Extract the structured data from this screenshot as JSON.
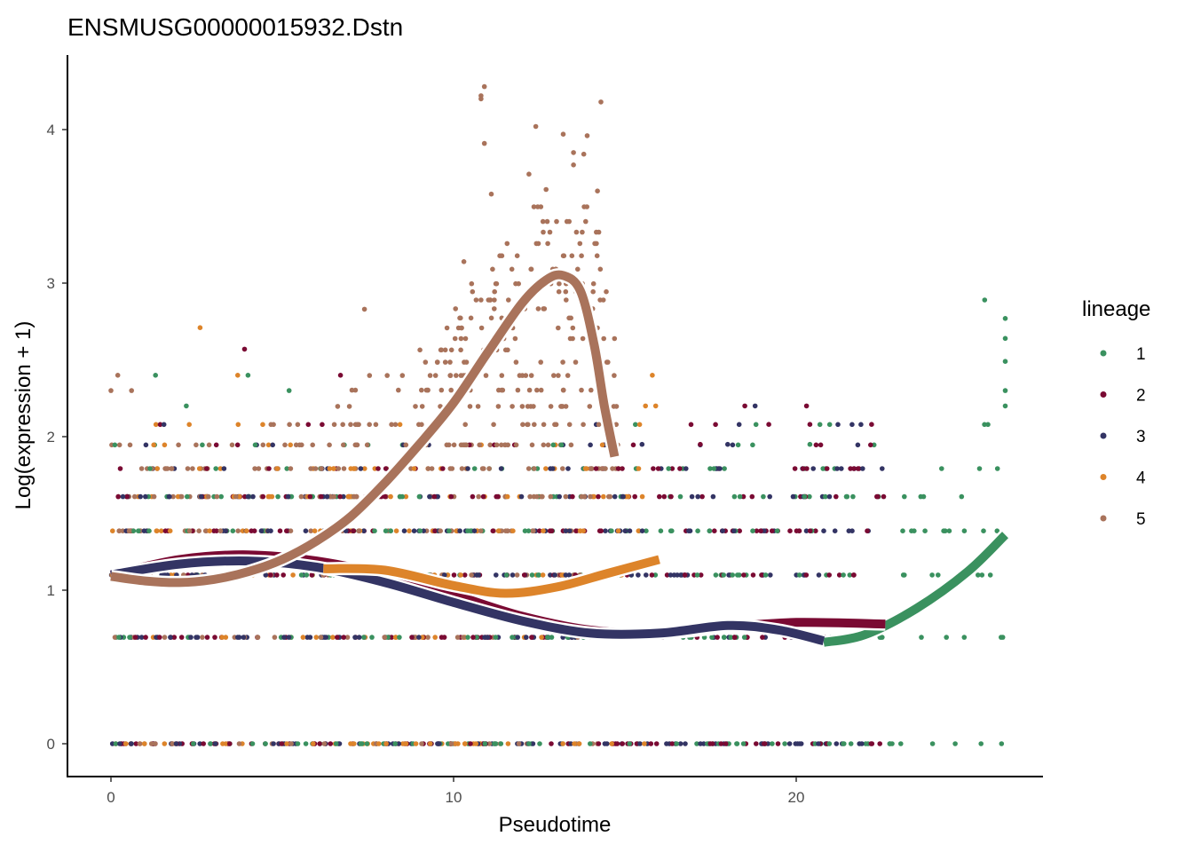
{
  "chart_data": {
    "type": "scatter",
    "title": "ENSMUSG00000015932.Dstn",
    "xlabel": "Pseudotime",
    "ylabel": "Log(expression + 1)",
    "xlim": [
      -1.3,
      27.1
    ],
    "ylim": [
      -0.21,
      4.5
    ],
    "x_ticks": [
      0,
      10,
      20
    ],
    "y_ticks": [
      0,
      1,
      2,
      3,
      4
    ],
    "grid": false,
    "legend": {
      "title": "lineage",
      "position": "right",
      "entries": [
        {
          "label": "1",
          "color": "#3a915f"
        },
        {
          "label": "2",
          "color": "#7a0a33"
        },
        {
          "label": "3",
          "color": "#333464"
        },
        {
          "label": "4",
          "color": "#dd842a"
        },
        {
          "label": "5",
          "color": "#a9735b"
        }
      ]
    },
    "series": [
      {
        "name": "1",
        "color": "#3a915f",
        "point_bands": [
          {
            "y": 0,
            "x_range": [
              0,
              26.1
            ],
            "n": 70
          },
          {
            "y": 0.693,
            "x_range": [
              0,
              26.1
            ],
            "n": 60
          },
          {
            "y": 1.099,
            "x_range": [
              0,
              26.1
            ],
            "n": 60
          },
          {
            "y": 1.386,
            "x_range": [
              0,
              26.1
            ],
            "n": 50
          },
          {
            "y": 1.609,
            "x_range": [
              0,
              26.1
            ],
            "n": 40
          },
          {
            "y": 1.792,
            "x_range": [
              0,
              26.1
            ],
            "n": 25
          },
          {
            "y": 1.946,
            "x_range": [
              0,
              26.1
            ],
            "n": 12
          },
          {
            "y": 2.079,
            "x_range": [
              0,
              26.1
            ],
            "n": 6
          }
        ],
        "outliers": [
          [
            1.3,
            2.4
          ],
          [
            2.2,
            2.2
          ],
          [
            4,
            2.4
          ],
          [
            5.2,
            2.3
          ],
          [
            20.4,
            1.95
          ],
          [
            25.5,
            2.89
          ],
          [
            26.1,
            2.77
          ],
          [
            26.1,
            2.64
          ],
          [
            26.1,
            2.49
          ],
          [
            26.1,
            2.3
          ],
          [
            26.1,
            2.2
          ]
        ],
        "smooth": [
          [
            20.8,
            0.66
          ],
          [
            22,
            0.71
          ],
          [
            23.5,
            0.88
          ],
          [
            25,
            1.12
          ],
          [
            26.1,
            1.36
          ]
        ]
      },
      {
        "name": "2",
        "color": "#7a0a33",
        "point_bands": [
          {
            "y": 0,
            "x_range": [
              0,
              22.6
            ],
            "n": 70
          },
          {
            "y": 0.693,
            "x_range": [
              0,
              22.6
            ],
            "n": 55
          },
          {
            "y": 1.099,
            "x_range": [
              0,
              22.6
            ],
            "n": 55
          },
          {
            "y": 1.386,
            "x_range": [
              0,
              22.6
            ],
            "n": 50
          },
          {
            "y": 1.609,
            "x_range": [
              0,
              22.6
            ],
            "n": 40
          },
          {
            "y": 1.792,
            "x_range": [
              0,
              22.6
            ],
            "n": 25
          },
          {
            "y": 1.946,
            "x_range": [
              0,
              22.6
            ],
            "n": 10
          },
          {
            "y": 2.079,
            "x_range": [
              0,
              22.6
            ],
            "n": 5
          }
        ],
        "outliers": [
          [
            3.9,
            2.57
          ],
          [
            6.7,
            2.4
          ],
          [
            18.5,
            2.2
          ],
          [
            20.3,
            2.2
          ],
          [
            19.2,
            2.08
          ],
          [
            20.4,
            2.08
          ],
          [
            22.2,
            2.08
          ],
          [
            17.2,
            1.95
          ]
        ],
        "smooth": [
          [
            0,
            1.1
          ],
          [
            2,
            1.2
          ],
          [
            4,
            1.23
          ],
          [
            6,
            1.19
          ],
          [
            8,
            1.1
          ],
          [
            10,
            0.97
          ],
          [
            12,
            0.83
          ],
          [
            14,
            0.74
          ],
          [
            16,
            0.72
          ],
          [
            18,
            0.76
          ],
          [
            20,
            0.79
          ],
          [
            22.6,
            0.78
          ]
        ]
      },
      {
        "name": "3",
        "color": "#333464",
        "point_bands": [
          {
            "y": 0,
            "x_range": [
              0,
              22.6
            ],
            "n": 70
          },
          {
            "y": 0.693,
            "x_range": [
              0,
              22.6
            ],
            "n": 50
          },
          {
            "y": 1.099,
            "x_range": [
              0,
              22.6
            ],
            "n": 55
          },
          {
            "y": 1.386,
            "x_range": [
              0,
              22.6
            ],
            "n": 50
          },
          {
            "y": 1.609,
            "x_range": [
              0,
              22.6
            ],
            "n": 40
          },
          {
            "y": 1.792,
            "x_range": [
              0,
              22.6
            ],
            "n": 25
          },
          {
            "y": 1.946,
            "x_range": [
              0,
              22.6
            ],
            "n": 12
          },
          {
            "y": 2.079,
            "x_range": [
              0,
              22.6
            ],
            "n": 6
          }
        ],
        "outliers": [
          [
            18.8,
            2.2
          ],
          [
            15.5,
            1.95
          ],
          [
            18,
            1.95
          ]
        ],
        "smooth": [
          [
            0,
            1.1
          ],
          [
            2,
            1.17
          ],
          [
            4,
            1.19
          ],
          [
            6,
            1.15
          ],
          [
            8,
            1.05
          ],
          [
            10,
            0.92
          ],
          [
            12,
            0.8
          ],
          [
            14,
            0.72
          ],
          [
            16,
            0.72
          ],
          [
            18,
            0.77
          ],
          [
            19.5,
            0.74
          ],
          [
            20.8,
            0.67
          ]
        ]
      },
      {
        "name": "4",
        "color": "#dd842a",
        "point_bands": [
          {
            "y": 0,
            "x_range": [
              0,
              16
            ],
            "n": 45
          },
          {
            "y": 0.693,
            "x_range": [
              0,
              16
            ],
            "n": 20
          },
          {
            "y": 1.099,
            "x_range": [
              0,
              16
            ],
            "n": 25
          },
          {
            "y": 1.386,
            "x_range": [
              0,
              16
            ],
            "n": 35
          },
          {
            "y": 1.609,
            "x_range": [
              0,
              16
            ],
            "n": 30
          },
          {
            "y": 1.792,
            "x_range": [
              0,
              16
            ],
            "n": 25
          },
          {
            "y": 1.946,
            "x_range": [
              0,
              16
            ],
            "n": 10
          },
          {
            "y": 2.079,
            "x_range": [
              0,
              16
            ],
            "n": 6
          }
        ],
        "outliers": [
          [
            2.6,
            2.71
          ],
          [
            3.7,
            2.4
          ],
          [
            15.8,
            2.4
          ],
          [
            15.6,
            2.2
          ],
          [
            15.9,
            2.2
          ],
          [
            14.5,
            2.08
          ]
        ],
        "smooth": [
          [
            6.2,
            1.14
          ],
          [
            8,
            1.13
          ],
          [
            10,
            1.03
          ],
          [
            11.5,
            0.98
          ],
          [
            13,
            1.02
          ],
          [
            14.5,
            1.11
          ],
          [
            16,
            1.2
          ]
        ]
      },
      {
        "name": "5",
        "color": "#a9735b",
        "point_bands": [
          {
            "y": 0,
            "x_range": [
              0,
              14.8
            ],
            "n": 25
          },
          {
            "y": 0.693,
            "x_range": [
              0,
              14.8
            ],
            "n": 20
          },
          {
            "y": 1.099,
            "x_range": [
              0,
              14.8
            ],
            "n": 30
          },
          {
            "y": 1.386,
            "x_range": [
              0,
              14.8
            ],
            "n": 45
          },
          {
            "y": 1.609,
            "x_range": [
              0,
              14.8
            ],
            "n": 50
          },
          {
            "y": 1.792,
            "x_range": [
              0,
              14.8
            ],
            "n": 50
          },
          {
            "y": 1.946,
            "x_range": [
              0,
              14.8
            ],
            "n": 45
          },
          {
            "y": 2.079,
            "x_range": [
              4.5,
              14.8
            ],
            "n": 30
          },
          {
            "y": 2.197,
            "x_range": [
              6,
              14.8
            ],
            "n": 22
          },
          {
            "y": 2.303,
            "x_range": [
              7,
              14.8
            ],
            "n": 22
          },
          {
            "y": 2.398,
            "x_range": [
              7.5,
              14.8
            ],
            "n": 22
          },
          {
            "y": 2.485,
            "x_range": [
              8,
              14.8
            ],
            "n": 14
          },
          {
            "y": 2.565,
            "x_range": [
              9,
              14.8
            ],
            "n": 12
          },
          {
            "y": 2.639,
            "x_range": [
              9.5,
              14.8
            ],
            "n": 14
          },
          {
            "y": 2.708,
            "x_range": [
              9.5,
              14.8
            ],
            "n": 12
          },
          {
            "y": 2.773,
            "x_range": [
              10,
              14.5
            ],
            "n": 10
          },
          {
            "y": 2.833,
            "x_range": [
              10,
              14.5
            ],
            "n": 10
          },
          {
            "y": 2.89,
            "x_range": [
              10.5,
              14.5
            ],
            "n": 10
          },
          {
            "y": 2.944,
            "x_range": [
              10.5,
              14.5
            ],
            "n": 8
          },
          {
            "y": 2.996,
            "x_range": [
              10,
              14.3
            ],
            "n": 10
          },
          {
            "y": 3.091,
            "x_range": [
              10.5,
              14.3
            ],
            "n": 9
          },
          {
            "y": 3.178,
            "x_range": [
              11,
              14.3
            ],
            "n": 8
          },
          {
            "y": 3.258,
            "x_range": [
              11.5,
              14.3
            ],
            "n": 7
          },
          {
            "y": 3.332,
            "x_range": [
              12.5,
              14.3
            ],
            "n": 6
          },
          {
            "y": 3.401,
            "x_range": [
              12.5,
              14.3
            ],
            "n": 6
          },
          {
            "y": 3.497,
            "x_range": [
              12,
              14.3
            ],
            "n": 5
          }
        ],
        "outliers": [
          [
            0,
            2.3
          ],
          [
            0.2,
            2.4
          ],
          [
            0.6,
            2.3
          ],
          [
            7.4,
            2.83
          ],
          [
            10.3,
            3.14
          ],
          [
            10.9,
            4.28
          ],
          [
            10.8,
            4.22
          ],
          [
            10.8,
            4.2
          ],
          [
            10.9,
            3.91
          ],
          [
            12.4,
            4.02
          ],
          [
            14.3,
            4.18
          ],
          [
            13.2,
            3.97
          ],
          [
            13.9,
            3.96
          ],
          [
            13.5,
            3.77
          ],
          [
            11.1,
            3.58
          ],
          [
            12.2,
            3.71
          ],
          [
            12.7,
            3.61
          ],
          [
            13.5,
            3.85
          ],
          [
            13.8,
            3.84
          ],
          [
            14.2,
            3.6
          ]
        ],
        "smooth": [
          [
            0,
            1.09
          ],
          [
            1,
            1.06
          ],
          [
            2,
            1.05
          ],
          [
            3,
            1.07
          ],
          [
            4,
            1.12
          ],
          [
            5,
            1.2
          ],
          [
            6,
            1.32
          ],
          [
            7,
            1.48
          ],
          [
            8,
            1.7
          ],
          [
            9,
            1.95
          ],
          [
            10,
            2.22
          ],
          [
            11,
            2.55
          ],
          [
            12,
            2.87
          ],
          [
            12.7,
            3.02
          ],
          [
            13.2,
            3.05
          ],
          [
            13.7,
            2.95
          ],
          [
            14.1,
            2.6
          ],
          [
            14.4,
            2.2
          ],
          [
            14.7,
            1.87
          ]
        ]
      }
    ]
  }
}
